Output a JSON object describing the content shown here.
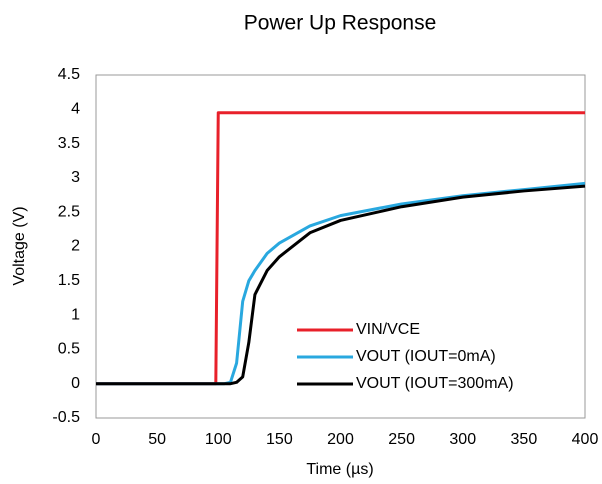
{
  "chart_data": {
    "type": "line",
    "title": "Power Up Response",
    "x_label": "Time (µs)",
    "y_label": "Voltage  (V)",
    "x": [
      0,
      98,
      100,
      105,
      110,
      115,
      120,
      125,
      130,
      140,
      150,
      175,
      200,
      250,
      300,
      350,
      400
    ],
    "series": [
      {
        "name": "VIN/VCE",
        "color": "#e8202a",
        "values": [
          0,
          0,
          3.95,
          3.95,
          3.95,
          3.95,
          3.95,
          3.95,
          3.95,
          3.95,
          3.95,
          3.95,
          3.95,
          3.95,
          3.95,
          3.95,
          3.95
        ]
      },
      {
        "name": "VOUT (IOUT=0mA)",
        "color": "#29a8df",
        "values": [
          0,
          0,
          0,
          0,
          0.02,
          0.3,
          1.2,
          1.5,
          1.65,
          1.9,
          2.05,
          2.3,
          2.45,
          2.62,
          2.74,
          2.83,
          2.92
        ]
      },
      {
        "name": "VOUT (IOUT=300mA)",
        "color": "#000000",
        "values": [
          0,
          0,
          0,
          0,
          0,
          0.02,
          0.1,
          0.6,
          1.3,
          1.65,
          1.85,
          2.2,
          2.38,
          2.58,
          2.72,
          2.81,
          2.88
        ]
      }
    ],
    "xlim": [
      0,
      400
    ],
    "xticks": [
      0,
      50,
      100,
      150,
      200,
      250,
      300,
      350,
      400
    ],
    "ylim": [
      -0.5,
      4.5
    ],
    "yticks": [
      -0.5,
      0,
      0.5,
      1,
      1.5,
      2,
      2.5,
      3,
      3.5,
      4,
      4.5
    ],
    "grid": false,
    "legend": "lower right"
  }
}
